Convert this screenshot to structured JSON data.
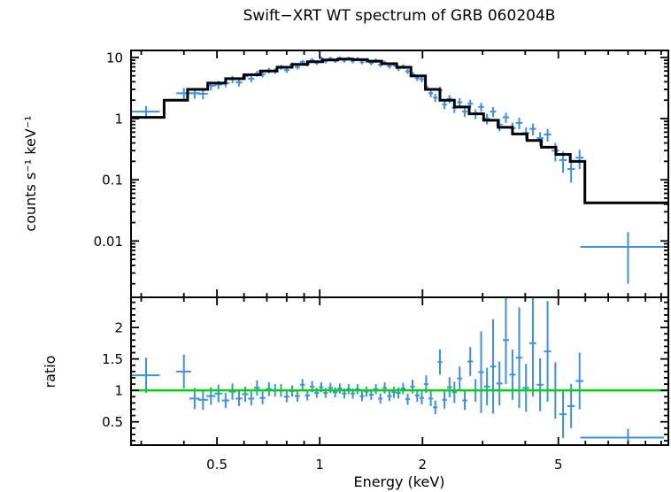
{
  "title": "Swift−XRT WT spectrum of GRB 060204B",
  "colors": {
    "data_points": "#3d8fec",
    "model_line": "#000000",
    "reference_line": "#00d400",
    "frame": "#000000",
    "background": "#ffffff"
  },
  "chart_data": [
    {
      "type": "scatter",
      "panel": "spectrum",
      "title": "Swift−XRT WT spectrum of GRB 060204B",
      "xlabel": "",
      "ylabel": "counts s⁻¹ keV⁻¹",
      "xscale": "log",
      "yscale": "log",
      "xlim": [
        0.28,
        10.5
      ],
      "ylim": [
        0.0012,
        13
      ],
      "xticks": [
        0.5,
        1,
        2,
        5
      ],
      "xtick_labels": [
        "0.5",
        "1",
        "2",
        "5"
      ],
      "yticks": [
        10,
        1,
        0.1,
        0.01
      ],
      "ytick_labels": [
        "10",
        "1",
        "0.1",
        "0.01"
      ],
      "grid": false,
      "legend": "none",
      "series": [
        {
          "name": "data",
          "marker": "cross-errorbar",
          "points": [
            [
              0.31,
              1.3,
              0.03,
              0.3
            ],
            [
              0.4,
              2.6,
              0.02,
              0.55
            ],
            [
              0.43,
              2.6,
              0.015,
              0.5
            ],
            [
              0.455,
              2.55,
              0.015,
              0.48
            ],
            [
              0.48,
              3.45,
              0.015,
              0.55
            ],
            [
              0.505,
              3.6,
              0.013,
              0.55
            ],
            [
              0.53,
              3.8,
              0.013,
              0.55
            ],
            [
              0.555,
              4.4,
              0.013,
              0.6
            ],
            [
              0.58,
              3.9,
              0.013,
              0.55
            ],
            [
              0.605,
              4.9,
              0.013,
              0.6
            ],
            [
              0.63,
              4.5,
              0.013,
              0.58
            ],
            [
              0.655,
              5.4,
              0.013,
              0.62
            ],
            [
              0.68,
              5.3,
              0.013,
              0.6
            ],
            [
              0.71,
              6.1,
              0.015,
              0.65
            ],
            [
              0.74,
              6.0,
              0.015,
              0.62
            ],
            [
              0.77,
              6.9,
              0.015,
              0.65
            ],
            [
              0.8,
              6.2,
              0.015,
              0.62
            ],
            [
              0.83,
              7.6,
              0.015,
              0.68
            ],
            [
              0.86,
              7.0,
              0.015,
              0.65
            ],
            [
              0.89,
              8.4,
              0.015,
              0.7
            ],
            [
              0.92,
              7.8,
              0.015,
              0.68
            ],
            [
              0.95,
              9.0,
              0.015,
              0.72
            ],
            [
              0.98,
              8.2,
              0.015,
              0.7
            ],
            [
              1.01,
              9.6,
              0.015,
              0.75
            ],
            [
              1.04,
              8.7,
              0.015,
              0.7
            ],
            [
              1.075,
              9.5,
              0.018,
              0.72
            ],
            [
              1.11,
              8.8,
              0.018,
              0.7
            ],
            [
              1.145,
              9.7,
              0.018,
              0.72
            ],
            [
              1.18,
              8.9,
              0.018,
              0.7
            ],
            [
              1.215,
              9.6,
              0.018,
              0.72
            ],
            [
              1.25,
              8.7,
              0.018,
              0.7
            ],
            [
              1.29,
              9.4,
              0.02,
              0.72
            ],
            [
              1.33,
              8.4,
              0.02,
              0.68
            ],
            [
              1.37,
              9.0,
              0.02,
              0.7
            ],
            [
              1.415,
              8.1,
              0.022,
              0.66
            ],
            [
              1.46,
              8.9,
              0.022,
              0.7
            ],
            [
              1.505,
              7.6,
              0.022,
              0.64
            ],
            [
              1.55,
              8.2,
              0.022,
              0.66
            ],
            [
              1.6,
              7.2,
              0.025,
              0.62
            ],
            [
              1.65,
              7.7,
              0.025,
              0.64
            ],
            [
              1.7,
              6.6,
              0.025,
              0.6
            ],
            [
              1.755,
              7.1,
              0.028,
              0.62
            ],
            [
              1.81,
              5.9,
              0.028,
              0.56
            ],
            [
              1.87,
              5.3,
              0.03,
              0.54
            ],
            [
              1.93,
              4.6,
              0.03,
              0.5
            ],
            [
              1.99,
              4.4,
              0.03,
              0.48
            ],
            [
              2.05,
              3.3,
              0.03,
              0.42
            ],
            [
              2.115,
              2.6,
              0.033,
              0.36
            ],
            [
              2.18,
              2.2,
              0.033,
              0.33
            ],
            [
              2.25,
              2.9,
              0.036,
              0.4
            ],
            [
              2.32,
              1.7,
              0.036,
              0.28
            ],
            [
              2.4,
              2.1,
              0.04,
              0.32
            ],
            [
              2.48,
              1.5,
              0.04,
              0.26
            ],
            [
              2.57,
              1.85,
              0.045,
              0.3
            ],
            [
              2.66,
              1.3,
              0.045,
              0.24
            ],
            [
              2.76,
              1.75,
              0.05,
              0.28
            ],
            [
              2.86,
              1.2,
              0.05,
              0.22
            ],
            [
              2.97,
              1.55,
              0.055,
              0.26
            ],
            [
              3.09,
              1.0,
              0.06,
              0.2
            ],
            [
              3.22,
              1.3,
              0.065,
              0.24
            ],
            [
              3.36,
              0.8,
              0.07,
              0.18
            ],
            [
              3.51,
              1.05,
              0.075,
              0.2
            ],
            [
              3.67,
              0.7,
              0.08,
              0.16
            ],
            [
              3.84,
              0.85,
              0.085,
              0.18
            ],
            [
              4.02,
              0.58,
              0.09,
              0.14
            ],
            [
              4.21,
              0.68,
              0.095,
              0.15
            ],
            [
              4.42,
              0.48,
              0.1,
              0.12
            ],
            [
              4.65,
              0.55,
              0.11,
              0.13
            ],
            [
              4.9,
              0.3,
              0.12,
              0.1
            ],
            [
              5.16,
              0.21,
              0.13,
              0.08
            ],
            [
              5.45,
              0.15,
              0.14,
              0.06
            ],
            [
              5.77,
              0.23,
              0.15,
              0.08
            ],
            [
              8.0,
              0.008,
              2.2,
              0.006
            ]
          ]
        },
        {
          "name": "model",
          "style": "step-histogram",
          "bin_edges": [
            0.28,
            0.35,
            0.41,
            0.47,
            0.53,
            0.6,
            0.67,
            0.75,
            0.83,
            0.92,
            1.02,
            1.13,
            1.25,
            1.38,
            1.52,
            1.68,
            1.85,
            2.04,
            2.25,
            2.48,
            2.74,
            3.02,
            3.33,
            3.67,
            4.05,
            4.46,
            4.92,
            5.42,
            5.98,
            10.5
          ],
          "bin_values": [
            1.05,
            2.0,
            3.0,
            3.8,
            4.5,
            5.2,
            6.0,
            6.9,
            7.7,
            8.5,
            9.1,
            9.4,
            9.2,
            8.7,
            7.9,
            6.9,
            5.0,
            3.0,
            2.0,
            1.55,
            1.2,
            0.94,
            0.72,
            0.56,
            0.44,
            0.34,
            0.26,
            0.2,
            0.042
          ]
        }
      ]
    },
    {
      "type": "scatter",
      "panel": "ratio",
      "title": "",
      "xlabel": "Energy (keV)",
      "ylabel": "ratio",
      "xscale": "log",
      "yscale": "linear",
      "xlim": [
        0.28,
        10.5
      ],
      "ylim": [
        0.13,
        2.48
      ],
      "xticks": [
        0.5,
        1,
        2,
        5
      ],
      "xtick_labels": [
        "0.5",
        "1",
        "2",
        "5"
      ],
      "yticks": [
        2,
        1.5,
        1,
        0.5
      ],
      "ytick_labels": [
        "2",
        "1.5",
        "1",
        "0.5"
      ],
      "reference_line": 1,
      "grid": false,
      "legend": "none",
      "series": [
        {
          "name": "ratio",
          "marker": "cross-errorbar",
          "points": [
            [
              0.31,
              1.24,
              0.03,
              0.28
            ],
            [
              0.4,
              1.3,
              0.02,
              0.27
            ],
            [
              0.43,
              0.87,
              0.015,
              0.17
            ],
            [
              0.455,
              0.85,
              0.015,
              0.16
            ],
            [
              0.48,
              0.91,
              0.015,
              0.14
            ],
            [
              0.505,
              0.95,
              0.013,
              0.14
            ],
            [
              0.53,
              0.84,
              0.013,
              0.12
            ],
            [
              0.555,
              0.98,
              0.013,
              0.13
            ],
            [
              0.58,
              0.87,
              0.013,
              0.12
            ],
            [
              0.605,
              0.94,
              0.013,
              0.12
            ],
            [
              0.63,
              0.87,
              0.013,
              0.11
            ],
            [
              0.655,
              1.04,
              0.013,
              0.12
            ],
            [
              0.68,
              0.88,
              0.013,
              0.1
            ],
            [
              0.71,
              1.02,
              0.015,
              0.11
            ],
            [
              0.74,
              1.0,
              0.015,
              0.1
            ],
            [
              0.77,
              1.0,
              0.015,
              0.1
            ],
            [
              0.8,
              0.9,
              0.015,
              0.09
            ],
            [
              0.83,
              0.99,
              0.015,
              0.09
            ],
            [
              0.86,
              0.91,
              0.015,
              0.09
            ],
            [
              0.89,
              1.09,
              0.015,
              0.09
            ],
            [
              0.92,
              0.92,
              0.015,
              0.08
            ],
            [
              0.95,
              1.06,
              0.015,
              0.09
            ],
            [
              0.98,
              0.96,
              0.015,
              0.08
            ],
            [
              1.01,
              1.05,
              0.015,
              0.08
            ],
            [
              1.04,
              0.96,
              0.015,
              0.08
            ],
            [
              1.075,
              1.04,
              0.018,
              0.08
            ],
            [
              1.11,
              0.97,
              0.018,
              0.08
            ],
            [
              1.145,
              1.03,
              0.018,
              0.08
            ],
            [
              1.18,
              0.95,
              0.018,
              0.08
            ],
            [
              1.215,
              1.02,
              0.018,
              0.08
            ],
            [
              1.25,
              0.95,
              0.018,
              0.08
            ],
            [
              1.29,
              1.02,
              0.02,
              0.08
            ],
            [
              1.33,
              0.91,
              0.02,
              0.08
            ],
            [
              1.37,
              0.98,
              0.02,
              0.08
            ],
            [
              1.415,
              0.93,
              0.022,
              0.08
            ],
            [
              1.46,
              1.02,
              0.022,
              0.08
            ],
            [
              1.505,
              0.87,
              0.022,
              0.08
            ],
            [
              1.55,
              1.04,
              0.022,
              0.09
            ],
            [
              1.6,
              0.91,
              0.025,
              0.08
            ],
            [
              1.65,
              0.97,
              0.025,
              0.09
            ],
            [
              1.7,
              0.96,
              0.025,
              0.09
            ],
            [
              1.755,
              1.03,
              0.028,
              0.09
            ],
            [
              1.81,
              0.86,
              0.028,
              0.09
            ],
            [
              1.87,
              1.06,
              0.03,
              0.11
            ],
            [
              1.93,
              0.92,
              0.03,
              0.1
            ],
            [
              1.99,
              0.88,
              0.03,
              0.1
            ],
            [
              2.05,
              1.1,
              0.03,
              0.14
            ],
            [
              2.115,
              0.87,
              0.033,
              0.12
            ],
            [
              2.18,
              0.73,
              0.033,
              0.11
            ],
            [
              2.25,
              1.45,
              0.036,
              0.2
            ],
            [
              2.32,
              0.85,
              0.036,
              0.14
            ],
            [
              2.4,
              1.05,
              0.04,
              0.16
            ],
            [
              2.48,
              0.97,
              0.04,
              0.17
            ],
            [
              2.57,
              1.19,
              0.045,
              0.19
            ],
            [
              2.66,
              0.84,
              0.045,
              0.15
            ],
            [
              2.76,
              1.46,
              0.05,
              0.23
            ],
            [
              2.86,
              1.0,
              0.05,
              0.18
            ],
            [
              2.97,
              1.29,
              0.055,
              0.65
            ],
            [
              3.09,
              1.06,
              0.06,
              0.3
            ],
            [
              3.22,
              1.38,
              0.065,
              0.75
            ],
            [
              3.36,
              1.11,
              0.07,
              0.35
            ],
            [
              3.51,
              1.8,
              0.075,
              0.7
            ],
            [
              3.67,
              1.25,
              0.08,
              0.4
            ],
            [
              3.84,
              1.52,
              0.085,
              0.8
            ],
            [
              4.02,
              1.04,
              0.09,
              0.38
            ],
            [
              4.21,
              1.75,
              0.095,
              0.85
            ],
            [
              4.42,
              1.09,
              0.1,
              0.42
            ],
            [
              4.65,
              1.62,
              0.11,
              0.8
            ],
            [
              4.9,
              1.0,
              0.12,
              0.45
            ],
            [
              5.16,
              0.62,
              0.13,
              0.38
            ],
            [
              5.45,
              0.75,
              0.14,
              0.35
            ],
            [
              5.77,
              1.15,
              0.15,
              0.45
            ],
            [
              8.0,
              0.25,
              2.2,
              0.14
            ]
          ]
        }
      ]
    }
  ]
}
